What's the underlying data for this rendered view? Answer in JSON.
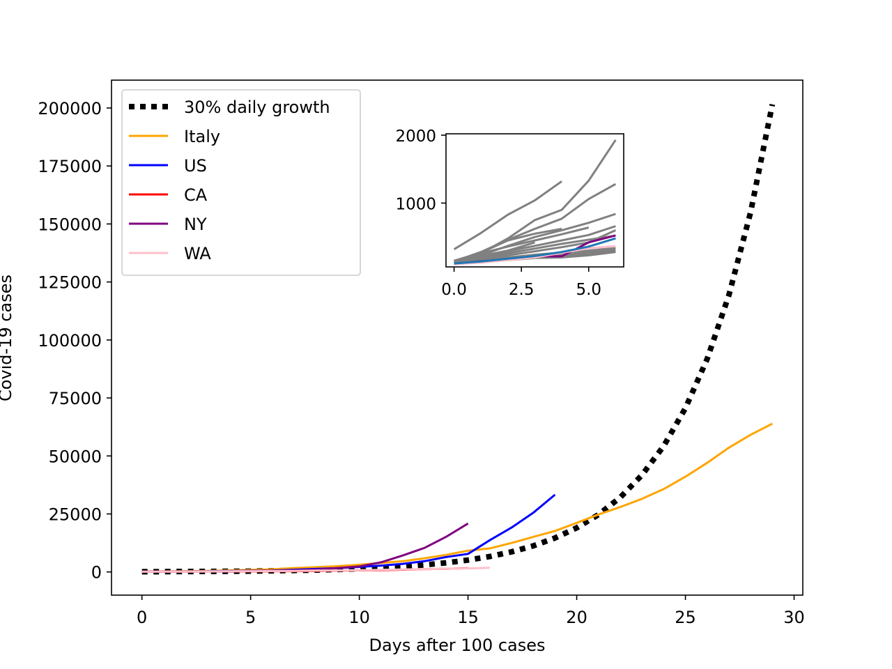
{
  "chart_data": {
    "type": "line",
    "title": "",
    "xlabel": "Days after 100 cases",
    "ylabel": "Covid-19 cases",
    "xlim": [
      -1.4,
      30.4
    ],
    "ylim": [
      -10000,
      212000
    ],
    "xticks": [
      0,
      5,
      10,
      15,
      20,
      25,
      30
    ],
    "yticks": [
      0,
      25000,
      50000,
      75000,
      100000,
      125000,
      150000,
      175000,
      200000
    ],
    "grid": false,
    "legend_position": "top-left",
    "series": [
      {
        "name": "30% daily growth",
        "color": "#000000",
        "style": "dotted",
        "x": [
          0,
          1,
          2,
          3,
          4,
          5,
          6,
          7,
          8,
          9,
          10,
          11,
          12,
          13,
          14,
          15,
          16,
          17,
          18,
          19,
          20,
          21,
          22,
          23,
          24,
          25,
          26,
          27,
          28,
          29
        ],
        "y": [
          100,
          130,
          169,
          220,
          286,
          371,
          483,
          627,
          816,
          1060,
          1379,
          1792,
          2330,
          3029,
          3937,
          5119,
          6654,
          8650,
          11246,
          14619,
          19005,
          24706,
          32118,
          41754,
          54280,
          70564,
          91733,
          119253,
          155029,
          201538
        ]
      },
      {
        "name": "Italy",
        "color": "#ffa500",
        "style": "solid",
        "x": [
          0,
          1,
          2,
          3,
          4,
          5,
          6,
          7,
          8,
          9,
          10,
          11,
          12,
          13,
          14,
          15,
          16,
          17,
          18,
          19,
          20,
          21,
          22,
          23,
          24,
          25,
          26,
          27,
          28,
          29
        ],
        "y": [
          155,
          229,
          322,
          453,
          655,
          888,
          1128,
          1694,
          2036,
          2502,
          3089,
          3858,
          4636,
          5883,
          7375,
          9172,
          10149,
          12462,
          15113,
          17660,
          21157,
          24747,
          27980,
          31506,
          35713,
          41035,
          47021,
          53578,
          59138,
          63927
        ]
      },
      {
        "name": "US",
        "color": "#0000ff",
        "style": "solid",
        "x": [
          0,
          1,
          2,
          3,
          4,
          5,
          6,
          7,
          8,
          9,
          10,
          11,
          12,
          13,
          14,
          15,
          16,
          17,
          18,
          19
        ],
        "y": [
          118,
          149,
          217,
          262,
          402,
          518,
          583,
          959,
          1281,
          1663,
          2179,
          2726,
          3499,
          4632,
          6421,
          7786,
          13680,
          19101,
          25493,
          33276
        ]
      },
      {
        "name": "CA",
        "color": "#ff0000",
        "style": "solid",
        "x": [
          0,
          1,
          2,
          3,
          4,
          5,
          6,
          7,
          8,
          9,
          10,
          11,
          12,
          13,
          14,
          15
        ],
        "y": [
          114,
          133,
          157,
          177,
          198,
          252,
          282,
          340,
          426,
          557,
          698,
          751,
          952,
          1177,
          1364,
          1642
        ]
      },
      {
        "name": "NY",
        "color": "#800080",
        "style": "solid",
        "x": [
          0,
          1,
          2,
          3,
          4,
          5,
          6,
          7,
          8,
          9,
          10,
          11,
          12,
          13,
          14,
          15
        ],
        "y": [
          105,
          142,
          173,
          216,
          216,
          421,
          524,
          729,
          950,
          1700,
          2382,
          4152,
          7102,
          10356,
          15168,
          20875
        ]
      },
      {
        "name": "WA",
        "color": "#ffc0cb",
        "style": "solid",
        "x": [
          0,
          1,
          2,
          3,
          4,
          5,
          6,
          7,
          8,
          9,
          10,
          11,
          12,
          13,
          14,
          15,
          16
        ],
        "y": [
          102,
          122,
          162,
          200,
          267,
          336,
          366,
          442,
          568,
          642,
          769,
          904,
          1076,
          1187,
          1376,
          1524,
          1793
        ]
      }
    ],
    "inset": {
      "xlim": [
        -0.3,
        6.3
      ],
      "ylim": [
        60,
        2020
      ],
      "xticks": [
        0,
        2.5,
        5
      ],
      "xtick_labels": [
        "0.0",
        "2.5",
        "5.0"
      ],
      "yticks": [
        1000,
        2000
      ],
      "series": [
        {
          "color": "#808080",
          "x": [
            0,
            1,
            2,
            3,
            4,
            5,
            6
          ],
          "y": [
            120,
            260,
            480,
            750,
            900,
            1330,
            1930
          ]
        },
        {
          "color": "#808080",
          "x": [
            0,
            1,
            2,
            3,
            4
          ],
          "y": [
            320,
            560,
            830,
            1040,
            1320
          ]
        },
        {
          "color": "#808080",
          "x": [
            0,
            1,
            2,
            3,
            4,
            5,
            6
          ],
          "y": [
            140,
            280,
            460,
            620,
            770,
            1060,
            1280
          ]
        },
        {
          "color": "#808080",
          "x": [
            0,
            1,
            2,
            3,
            4,
            5,
            6
          ],
          "y": [
            130,
            230,
            370,
            500,
            600,
            710,
            840
          ]
        },
        {
          "color": "#808080",
          "x": [
            0,
            1,
            2,
            3,
            4
          ],
          "y": [
            150,
            270,
            450,
            550,
            620
          ]
        },
        {
          "color": "#808080",
          "x": [
            0,
            1,
            2,
            3,
            4,
            5,
            6
          ],
          "y": [
            130,
            200,
            290,
            370,
            450,
            530,
            660
          ]
        },
        {
          "color": "#808080",
          "x": [
            0,
            1,
            2,
            3,
            4,
            5
          ],
          "y": [
            150,
            260,
            360,
            450,
            540,
            640
          ]
        },
        {
          "color": "#808080",
          "x": [
            0,
            1,
            2,
            3,
            4,
            5,
            6
          ],
          "y": [
            120,
            170,
            230,
            290,
            350,
            420,
            600
          ]
        },
        {
          "color": "#808080",
          "x": [
            0,
            1,
            2,
            3,
            4,
            5,
            6
          ],
          "y": [
            130,
            190,
            260,
            330,
            400,
            460,
            520
          ]
        },
        {
          "color": "#808080",
          "x": [
            0,
            1,
            2,
            3,
            4,
            5,
            6
          ],
          "y": [
            120,
            160,
            200,
            240,
            270,
            300,
            340
          ]
        },
        {
          "color": "#808080",
          "x": [
            0,
            1,
            2,
            3,
            4,
            5,
            6
          ],
          "y": [
            110,
            150,
            180,
            210,
            240,
            270,
            310
          ]
        },
        {
          "color": "#808080",
          "x": [
            0,
            1,
            2,
            3,
            4,
            5,
            6
          ],
          "y": [
            110,
            140,
            170,
            200,
            220,
            250,
            290
          ]
        },
        {
          "color": "#808080",
          "x": [
            0,
            1,
            2,
            3
          ],
          "y": [
            140,
            220,
            300,
            420
          ]
        },
        {
          "color": "#808080",
          "x": [
            0,
            1,
            2,
            3,
            4,
            5,
            6
          ],
          "y": [
            100,
            130,
            160,
            190,
            200,
            230,
            280
          ]
        },
        {
          "color": "#800080",
          "x": [
            0,
            1,
            2,
            3,
            4,
            5,
            6
          ],
          "y": [
            105,
            142,
            173,
            216,
            216,
            421,
            524
          ]
        },
        {
          "color": "#ffc0cb",
          "x": [
            0,
            1,
            2,
            3,
            4,
            5,
            6
          ],
          "y": [
            102,
            122,
            162,
            200,
            267,
            336,
            366
          ]
        },
        {
          "color": "#1f77b4",
          "x": [
            0,
            1,
            2,
            3,
            4,
            5,
            6
          ],
          "y": [
            110,
            140,
            180,
            220,
            280,
            360,
            480
          ]
        }
      ]
    }
  }
}
